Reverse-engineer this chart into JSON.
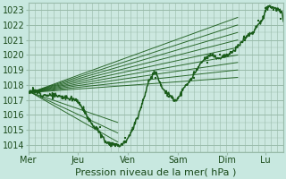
{
  "background_color": "#c8e8e0",
  "plot_bg_color": "#cce8e0",
  "grid_color": "#99bbaa",
  "line_color": "#1a5c1a",
  "ylim": [
    1013.5,
    1023.5
  ],
  "yticks": [
    1014,
    1015,
    1016,
    1017,
    1018,
    1019,
    1020,
    1021,
    1022,
    1023
  ],
  "day_labels": [
    "Mer",
    "Jeu",
    "Ven",
    "Sam",
    "Dim",
    "Lu"
  ],
  "day_positions": [
    0.0,
    0.195,
    0.39,
    0.585,
    0.78,
    0.93
  ],
  "xlabel": "Pression niveau de la mer( hPa )",
  "xlim": [
    0.0,
    1.0
  ],
  "tick_fontsize": 7,
  "label_fontsize": 8
}
